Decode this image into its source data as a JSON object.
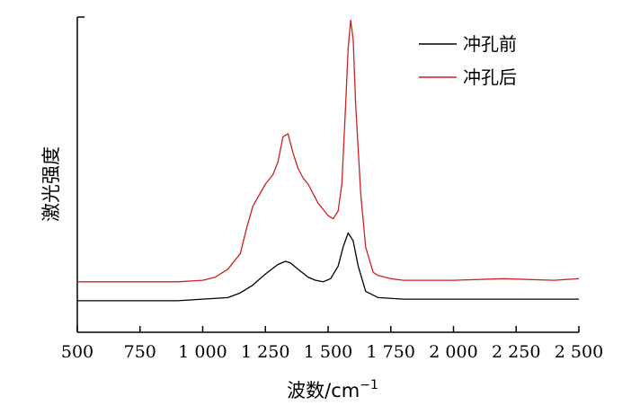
{
  "chart_data": {
    "type": "line",
    "xlabel": "波数/cm",
    "xlabel_sup": "−1",
    "ylabel": "激光强度",
    "xlim": [
      500,
      2500
    ],
    "ylim": [
      0,
      1.0
    ],
    "x_ticks": [
      500,
      750,
      1000,
      1250,
      1500,
      1750,
      2000,
      2250,
      2500
    ],
    "x_tick_labels": [
      "500",
      "750",
      "1 000",
      "1 250",
      "1 500",
      "1 750",
      "2 000",
      "2 250",
      "2 500"
    ],
    "y_ticks_labeled": false,
    "legend_position": "top-right",
    "series": [
      {
        "name": "冲孔前",
        "color": "#000000",
        "x": [
          500,
          700,
          900,
          1000,
          1100,
          1150,
          1200,
          1250,
          1300,
          1330,
          1350,
          1380,
          1420,
          1450,
          1480,
          1510,
          1540,
          1560,
          1580,
          1600,
          1620,
          1650,
          1700,
          1800,
          2000,
          2200,
          2400,
          2500
        ],
        "y": [
          0.1,
          0.1,
          0.1,
          0.105,
          0.11,
          0.125,
          0.15,
          0.185,
          0.215,
          0.225,
          0.22,
          0.2,
          0.175,
          0.165,
          0.16,
          0.17,
          0.21,
          0.27,
          0.315,
          0.29,
          0.21,
          0.13,
          0.11,
          0.105,
          0.105,
          0.105,
          0.105,
          0.105
        ]
      },
      {
        "name": "冲孔后",
        "color": "#cc2222",
        "x": [
          500,
          700,
          900,
          1000,
          1050,
          1100,
          1150,
          1175,
          1200,
          1250,
          1280,
          1300,
          1320,
          1340,
          1360,
          1380,
          1400,
          1420,
          1440,
          1460,
          1480,
          1500,
          1520,
          1540,
          1555,
          1570,
          1580,
          1590,
          1600,
          1610,
          1630,
          1650,
          1680,
          1700,
          1750,
          1800,
          2000,
          2200,
          2400,
          2500
        ],
        "y": [
          0.16,
          0.16,
          0.16,
          0.165,
          0.175,
          0.2,
          0.25,
          0.33,
          0.4,
          0.47,
          0.5,
          0.54,
          0.62,
          0.63,
          0.57,
          0.52,
          0.49,
          0.47,
          0.44,
          0.41,
          0.39,
          0.37,
          0.36,
          0.385,
          0.47,
          0.72,
          0.9,
          0.99,
          0.93,
          0.72,
          0.44,
          0.27,
          0.19,
          0.18,
          0.17,
          0.165,
          0.165,
          0.17,
          0.165,
          0.17
        ]
      }
    ]
  }
}
